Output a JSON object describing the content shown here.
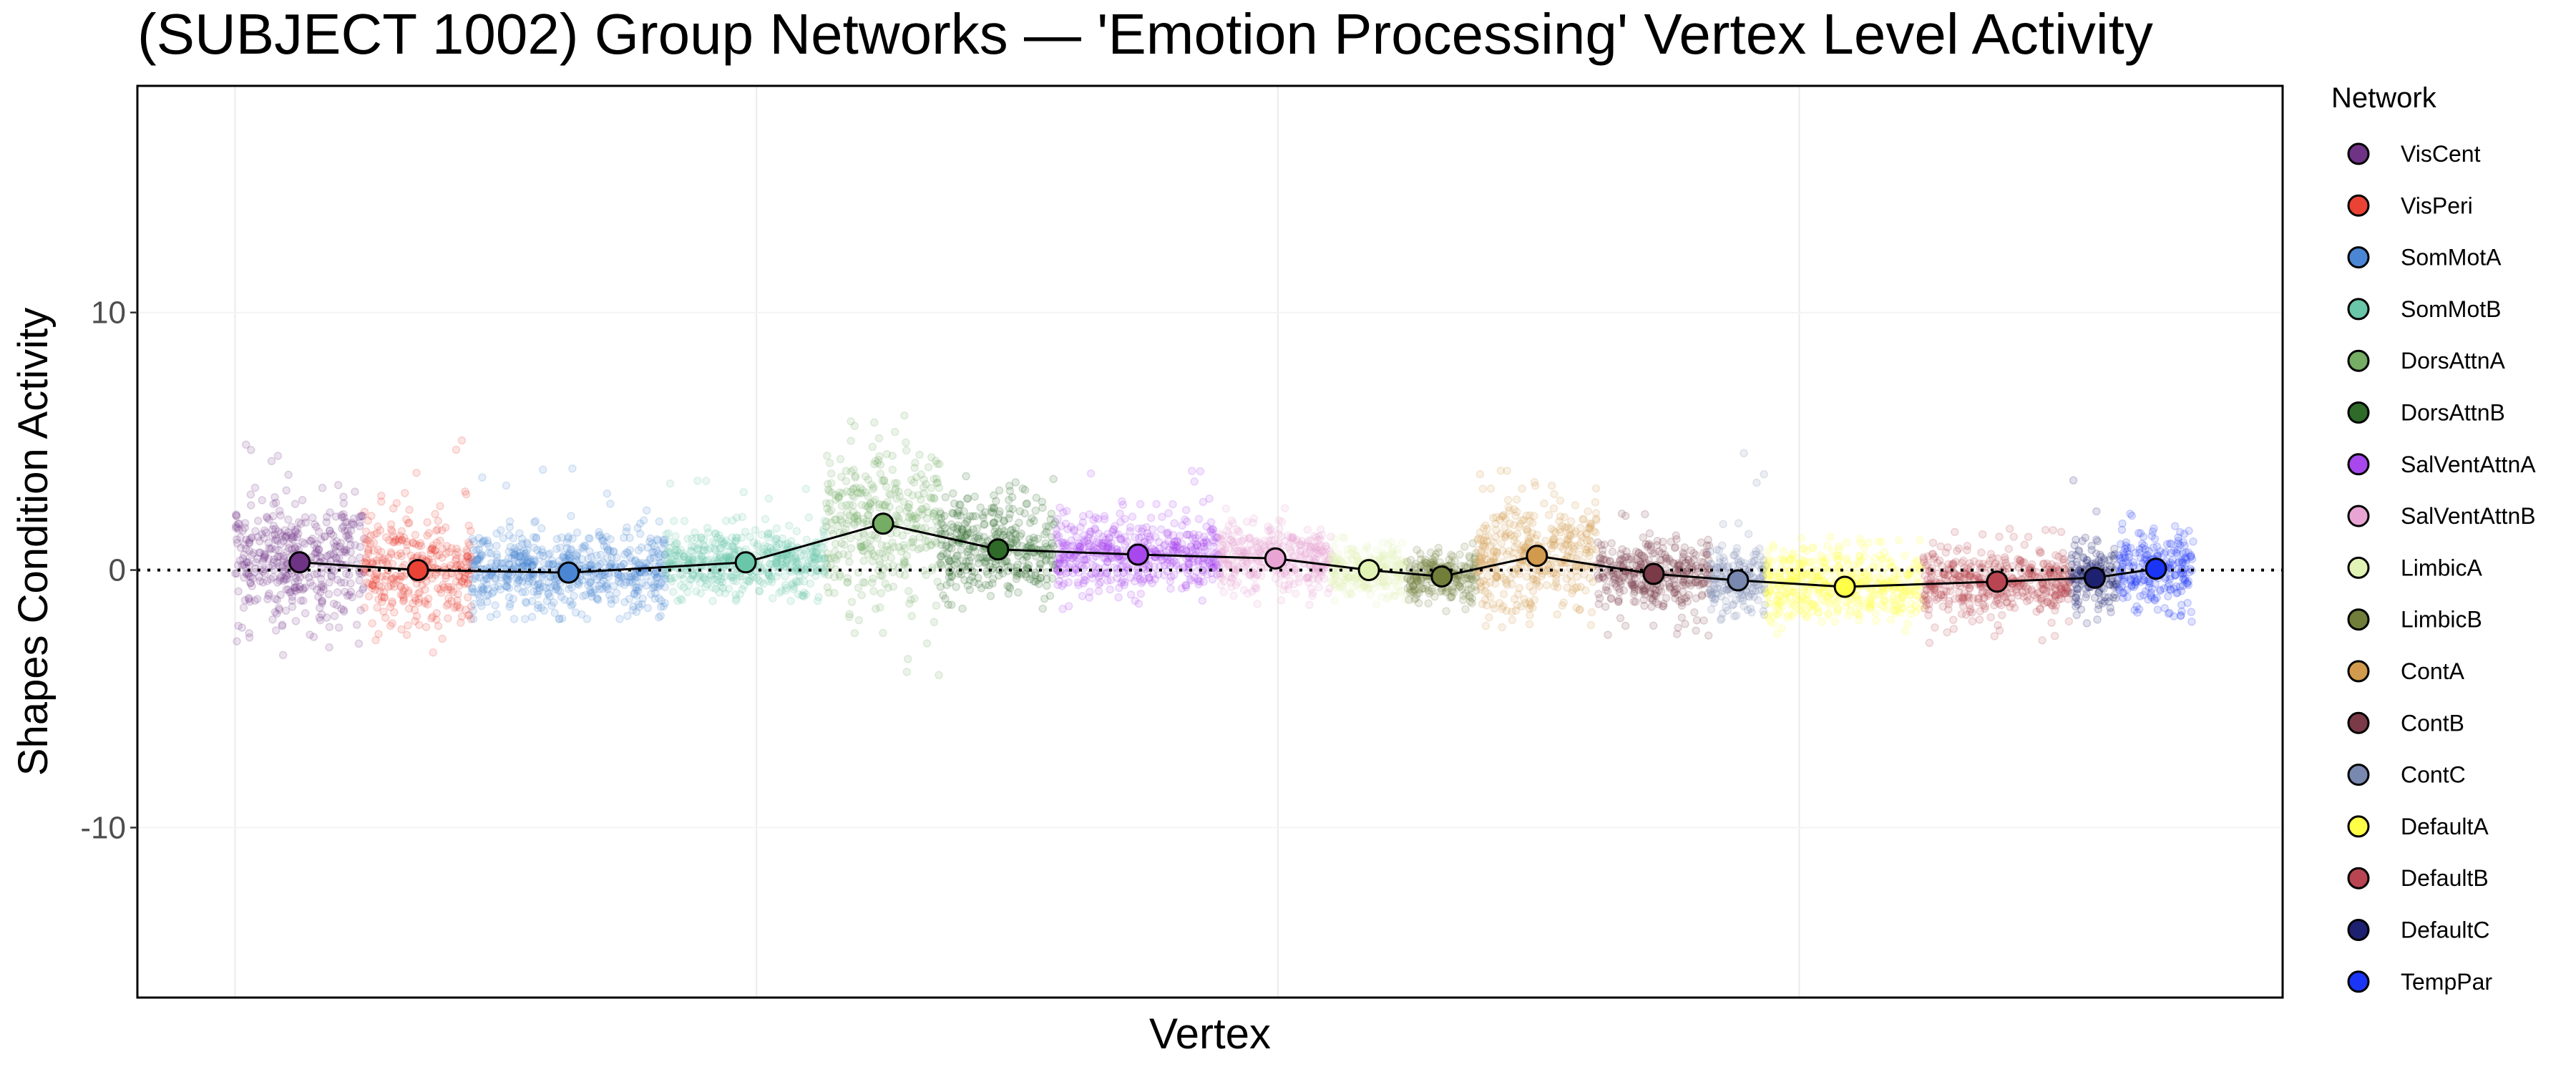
{
  "chart_data": {
    "type": "scatter",
    "title": "(SUBJECT 1002) Group Networks — 'Emotion Processing' Vertex Level Activity",
    "xlabel": "Vertex",
    "ylabel": "Shapes Condition Activity",
    "xlim": [
      -3746,
      78540
    ],
    "ylim": [
      -16.6,
      18.8
    ],
    "x_gridlines": [
      0,
      20000,
      40000,
      60000
    ],
    "y_ticks": [
      10,
      0,
      -10
    ],
    "y_tick_labels": [
      "10",
      "0",
      "-10"
    ],
    "reference_line_y": 0,
    "grid": true,
    "legend": {
      "title": "Network",
      "position": "right"
    },
    "series": [
      {
        "name": "VisCent",
        "color": "#6F3385",
        "x_start": 0,
        "x_end": 4952,
        "mean": 0.3,
        "sd": 1.5,
        "max": 5.0,
        "min": -3.3
      },
      {
        "name": "VisPeri",
        "color": "#EA4335",
        "x_start": 4952,
        "x_end": 9079,
        "mean": 0.0,
        "sd": 1.3,
        "max": 5.4,
        "min": -3.2
      },
      {
        "name": "SomMotA",
        "color": "#4A86D4",
        "x_start": 9079,
        "x_end": 16508,
        "mean": -0.1,
        "sd": 1.0,
        "max": 4.2,
        "min": -1.9
      },
      {
        "name": "SomMotB",
        "color": "#6AC6A8",
        "x_start": 16508,
        "x_end": 22667,
        "mean": 0.3,
        "sd": 0.8,
        "max": 3.8,
        "min": -1.2
      },
      {
        "name": "DorsAttnA",
        "color": "#74AD63",
        "x_start": 22667,
        "x_end": 27048,
        "mean": 1.8,
        "sd": 1.9,
        "max": 6.0,
        "min": -4.2
      },
      {
        "name": "DorsAttnB",
        "color": "#2E6B28",
        "x_start": 27048,
        "x_end": 31492,
        "mean": 0.8,
        "sd": 1.2,
        "max": 4.0,
        "min": -1.5
      },
      {
        "name": "SalVentAttnA",
        "color": "#A847EE",
        "x_start": 31492,
        "x_end": 37778,
        "mean": 0.6,
        "sd": 0.9,
        "max": 3.9,
        "min": -1.6
      },
      {
        "name": "SalVentAttnB",
        "color": "#E8A5D4",
        "x_start": 37778,
        "x_end": 42032,
        "mean": 0.45,
        "sd": 0.8,
        "max": 2.4,
        "min": -1.5
      },
      {
        "name": "LimbicA",
        "color": "#E2F4B5",
        "x_start": 42032,
        "x_end": 44952,
        "mean": 0.0,
        "sd": 0.6,
        "max": 1.6,
        "min": -1.4
      },
      {
        "name": "LimbicB",
        "color": "#707E3A",
        "x_start": 44952,
        "x_end": 47619,
        "mean": -0.25,
        "sd": 0.6,
        "max": 1.4,
        "min": -1.9
      },
      {
        "name": "ContA",
        "color": "#D19A4C",
        "x_start": 47619,
        "x_end": 52254,
        "mean": 0.55,
        "sd": 1.3,
        "max": 4.3,
        "min": -2.3
      },
      {
        "name": "ContB",
        "color": "#7A3A48",
        "x_start": 52254,
        "x_end": 56571,
        "mean": -0.15,
        "sd": 0.9,
        "max": 2.3,
        "min": -2.6
      },
      {
        "name": "ContC",
        "color": "#7888AE",
        "x_start": 56571,
        "x_end": 58730,
        "mean": -0.4,
        "sd": 0.8,
        "max": 5.0,
        "min": -2.4
      },
      {
        "name": "DefaultA",
        "color": "#FFFF47",
        "x_start": 58730,
        "x_end": 64762,
        "mean": -0.65,
        "sd": 0.9,
        "max": 1.5,
        "min": -2.6
      },
      {
        "name": "DefaultB",
        "color": "#B84551",
        "x_start": 64762,
        "x_end": 70413,
        "mean": -0.45,
        "sd": 0.8,
        "max": 1.6,
        "min": -2.9
      },
      {
        "name": "DefaultC",
        "color": "#1E2070",
        "x_start": 70413,
        "x_end": 72254,
        "mean": -0.3,
        "sd": 0.8,
        "max": 3.5,
        "min": -2.4
      },
      {
        "name": "TempPar",
        "color": "#1A35F5",
        "x_start": 72254,
        "x_end": 75111,
        "mean": 0.05,
        "sd": 1.0,
        "max": 2.4,
        "min": -2.4
      }
    ]
  }
}
